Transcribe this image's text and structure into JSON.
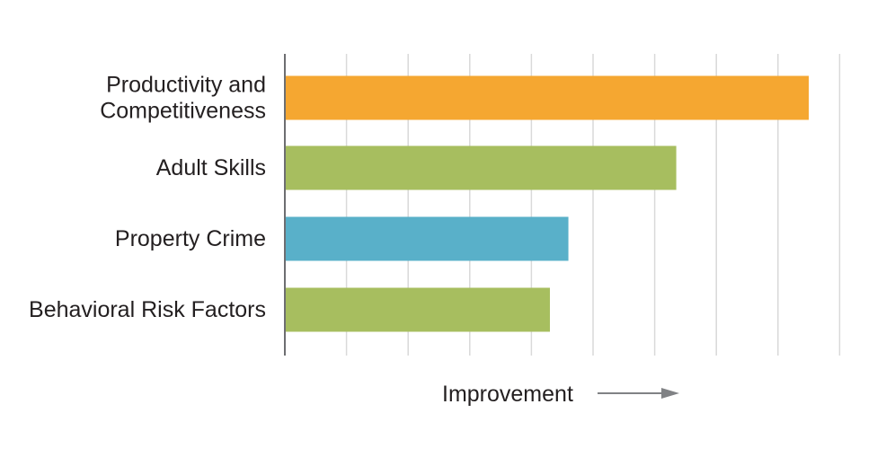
{
  "chart_data": {
    "type": "bar",
    "orientation": "horizontal",
    "categories": [
      [
        "Productivity and",
        "Competitiveness"
      ],
      [
        "Adult Skills"
      ],
      [
        "Property Crime"
      ],
      [
        "Behavioral Risk Factors"
      ]
    ],
    "values": [
      8.5,
      6.35,
      4.6,
      4.3
    ],
    "colors": [
      "#f5a731",
      "#a7be5f",
      "#59b0c9",
      "#a7be5f"
    ],
    "xlim": [
      0,
      9
    ],
    "grid": true,
    "xlabel": "Improvement",
    "xlabel_arrow": true,
    "ylabel": ""
  }
}
